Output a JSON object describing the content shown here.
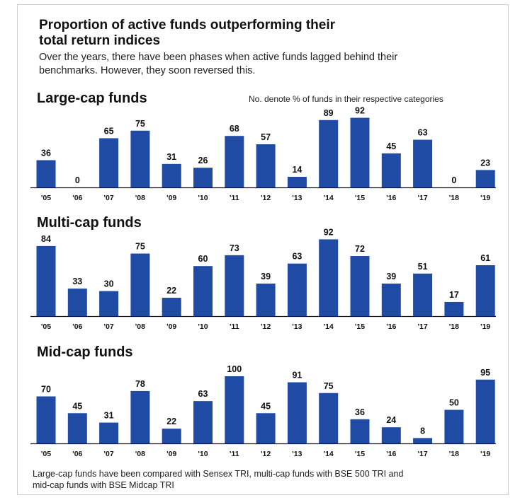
{
  "header": {
    "title_line1": "Proportion of active funds outperforming their",
    "title_line2": "total return indices",
    "subtitle_line1": "Over the years, there have been phases when active funds lagged behind their",
    "subtitle_line2": "benchmarks. However, they soon reversed this."
  },
  "note": "No. denote % of funds in their respective categories",
  "footnote_line1": "Large-cap funds have been compared with Sensex TRI, multi-cap funds with BSE 500 TRI and",
  "footnote_line2": "mid-cap funds with BSE Midcap TRI",
  "colors": {
    "bar": "#1f4ba5",
    "axis": "#111111"
  },
  "chart_data": [
    {
      "type": "bar",
      "title": "Large-cap funds",
      "categories": [
        "'05",
        "'06",
        "'07",
        "'08",
        "'09",
        "'10",
        "'11",
        "'12",
        "'13",
        "'14",
        "'15",
        "'16",
        "'17",
        "'18",
        "'19"
      ],
      "values": [
        36,
        0,
        65,
        75,
        31,
        26,
        68,
        57,
        14,
        89,
        92,
        45,
        63,
        0,
        23
      ],
      "ylim": [
        0,
        100
      ]
    },
    {
      "type": "bar",
      "title": "Multi-cap funds",
      "categories": [
        "'05",
        "'06",
        "'07",
        "'08",
        "'09",
        "'10",
        "'11",
        "'12",
        "'13",
        "'14",
        "'15",
        "'16",
        "'17",
        "'18",
        "'19"
      ],
      "values": [
        84,
        33,
        30,
        75,
        22,
        60,
        73,
        39,
        63,
        92,
        72,
        39,
        51,
        17,
        61
      ],
      "ylim": [
        0,
        100
      ]
    },
    {
      "type": "bar",
      "title": "Mid-cap funds",
      "categories": [
        "'05",
        "'06",
        "'07",
        "'08",
        "'09",
        "'10",
        "'11",
        "'12",
        "'13",
        "'14",
        "'15",
        "'16",
        "'17",
        "'18",
        "'19"
      ],
      "values": [
        70,
        45,
        31,
        78,
        22,
        63,
        100,
        45,
        91,
        75,
        36,
        24,
        8,
        50,
        95
      ],
      "ylim": [
        0,
        100
      ]
    }
  ]
}
